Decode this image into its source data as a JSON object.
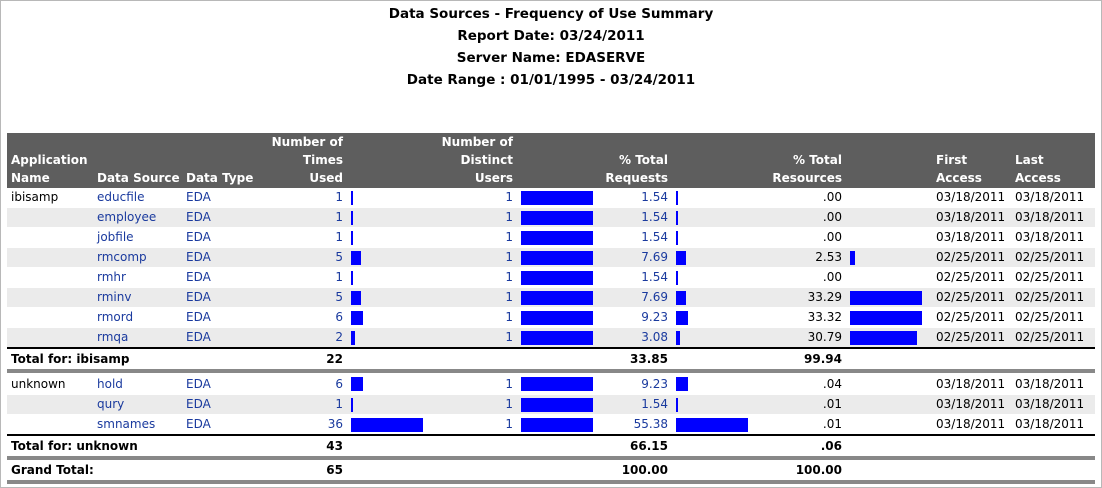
{
  "header": {
    "title": "Data Sources - Frequency of Use Summary",
    "report_date": "Report Date:  03/24/2011",
    "server_name": "Server Name: EDASERVE",
    "date_range": "Date Range :  01/01/1995 - 03/24/2011"
  },
  "columns": {
    "app_name": [
      "Application",
      "Name"
    ],
    "data_source": "Data Source",
    "data_type": "Data Type",
    "times_used": [
      "Number of",
      "Times",
      "Used"
    ],
    "distinct_users": [
      "Number of",
      "Distinct",
      "Users"
    ],
    "pct_requests": [
      "% Total",
      "Requests"
    ],
    "pct_resources": [
      "% Total",
      "Resources"
    ],
    "first_access": [
      "First",
      "Access"
    ],
    "last_access": [
      "Last",
      "Access"
    ]
  },
  "groups": [
    {
      "app": "ibisamp",
      "rows": [
        {
          "source": "educfile",
          "type": "EDA",
          "times": "1",
          "users": "1",
          "req": "1.54",
          "res": ".00",
          "first": "03/18/2011",
          "last": "03/18/2011",
          "times_frac": 0.028,
          "users_frac": 1.0,
          "req_frac": 0.028,
          "res_frac": 0.0
        },
        {
          "source": "employee",
          "type": "EDA",
          "times": "1",
          "users": "1",
          "req": "1.54",
          "res": ".00",
          "first": "03/18/2011",
          "last": "03/18/2011",
          "times_frac": 0.028,
          "users_frac": 1.0,
          "req_frac": 0.028,
          "res_frac": 0.0
        },
        {
          "source": "jobfile",
          "type": "EDA",
          "times": "1",
          "users": "1",
          "req": "1.54",
          "res": ".00",
          "first": "03/18/2011",
          "last": "03/18/2011",
          "times_frac": 0.028,
          "users_frac": 1.0,
          "req_frac": 0.028,
          "res_frac": 0.0
        },
        {
          "source": "rmcomp",
          "type": "EDA",
          "times": "5",
          "users": "1",
          "req": "7.69",
          "res": "2.53",
          "first": "02/25/2011",
          "last": "02/25/2011",
          "times_frac": 0.139,
          "users_frac": 1.0,
          "req_frac": 0.139,
          "res_frac": 0.076
        },
        {
          "source": "rmhr",
          "type": "EDA",
          "times": "1",
          "users": "1",
          "req": "1.54",
          "res": ".00",
          "first": "02/25/2011",
          "last": "02/25/2011",
          "times_frac": 0.028,
          "users_frac": 1.0,
          "req_frac": 0.028,
          "res_frac": 0.0
        },
        {
          "source": "rminv",
          "type": "EDA",
          "times": "5",
          "users": "1",
          "req": "7.69",
          "res": "33.29",
          "first": "02/25/2011",
          "last": "02/25/2011",
          "times_frac": 0.139,
          "users_frac": 1.0,
          "req_frac": 0.139,
          "res_frac": 1.0
        },
        {
          "source": "rmord",
          "type": "EDA",
          "times": "6",
          "users": "1",
          "req": "9.23",
          "res": "33.32",
          "first": "02/25/2011",
          "last": "02/25/2011",
          "times_frac": 0.167,
          "users_frac": 1.0,
          "req_frac": 0.167,
          "res_frac": 1.0
        },
        {
          "source": "rmqa",
          "type": "EDA",
          "times": "2",
          "users": "1",
          "req": "3.08",
          "res": "30.79",
          "first": "02/25/2011",
          "last": "02/25/2011",
          "times_frac": 0.056,
          "users_frac": 1.0,
          "req_frac": 0.056,
          "res_frac": 0.924
        }
      ],
      "total_label": "Total for:  ibisamp",
      "total_times": "22",
      "total_req": "33.85",
      "total_res": "99.94"
    },
    {
      "app": "unknown",
      "rows": [
        {
          "source": "hold",
          "type": "EDA",
          "times": "6",
          "users": "1",
          "req": "9.23",
          "res": ".04",
          "first": "03/18/2011",
          "last": "03/18/2011",
          "times_frac": 0.167,
          "users_frac": 1.0,
          "req_frac": 0.167,
          "res_frac": 0.0
        },
        {
          "source": "qury",
          "type": "EDA",
          "times": "1",
          "users": "1",
          "req": "1.54",
          "res": ".01",
          "first": "03/18/2011",
          "last": "03/18/2011",
          "times_frac": 0.028,
          "users_frac": 1.0,
          "req_frac": 0.028,
          "res_frac": 0.0
        },
        {
          "source": "smnames",
          "type": "EDA",
          "times": "36",
          "users": "1",
          "req": "55.38",
          "res": ".01",
          "first": "03/18/2011",
          "last": "03/18/2011",
          "times_frac": 1.0,
          "users_frac": 1.0,
          "req_frac": 1.0,
          "res_frac": 0.0
        }
      ],
      "total_label": "Total for:  unknown",
      "total_times": "43",
      "total_req": "66.15",
      "total_res": ".06"
    }
  ],
  "grand_total": {
    "label": "Grand Total:",
    "times": "65",
    "req": "100.00",
    "res": "100.00"
  },
  "colors": {
    "bar": "#0000ff",
    "header_bg": "#5e5e5e",
    "alt_row": "#ebebeb",
    "link": "#1a3a9e"
  }
}
